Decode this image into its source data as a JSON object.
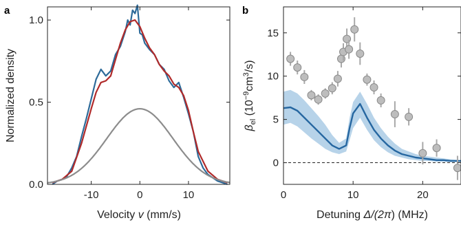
{
  "chart_data": [
    {
      "panel_label": "a",
      "type": "line",
      "xlabel": "Velocity v (mm/s)",
      "ylabel": "Normalized density",
      "xlim": [
        -19,
        18.5
      ],
      "ylim": [
        0,
        1.08
      ],
      "xticks": [
        -10,
        0,
        10
      ],
      "xtick_labels": [
        "-10",
        "0",
        "10"
      ],
      "yticks": [
        0,
        0.5,
        1.0
      ],
      "ytick_labels": [
        "0.0",
        "0.5",
        "1.0"
      ],
      "grid": false,
      "colors": {
        "data": "#2d6a99",
        "fit": "#b02a2a",
        "gaussian": "#8c8c8c"
      },
      "series": [
        {
          "role": "data",
          "x": [
            -18,
            -17,
            -16,
            -15,
            -14,
            -13,
            -12,
            -11,
            -10,
            -9,
            -8,
            -7,
            -6,
            -5,
            -4,
            -3,
            -2.5,
            -2,
            -1.5,
            -1,
            -0.5,
            0,
            0.5,
            1,
            2,
            3,
            4,
            5,
            6,
            7,
            8,
            9,
            10,
            11,
            12,
            13,
            14,
            15,
            16,
            17,
            18
          ],
          "y": [
            0.0,
            0.02,
            0.03,
            0.05,
            0.1,
            0.17,
            0.29,
            0.4,
            0.52,
            0.64,
            0.7,
            0.66,
            0.69,
            0.79,
            0.84,
            0.93,
            1.0,
            0.97,
            1.06,
            1.04,
            1.09,
            0.92,
            0.91,
            0.86,
            0.82,
            0.79,
            0.73,
            0.7,
            0.63,
            0.59,
            0.62,
            0.53,
            0.43,
            0.32,
            0.17,
            0.1,
            0.06,
            0.04,
            0.02,
            0.01,
            0.0
          ]
        },
        {
          "role": "fit",
          "x": [
            -18,
            -16,
            -14,
            -12,
            -10,
            -9,
            -8,
            -7,
            -6,
            -5,
            -4,
            -3,
            -2,
            -1,
            0,
            1,
            2,
            3,
            4,
            5,
            6,
            7,
            8,
            9,
            10,
            11,
            12,
            14,
            16,
            18
          ],
          "y": [
            0.01,
            0.03,
            0.08,
            0.25,
            0.46,
            0.56,
            0.62,
            0.63,
            0.66,
            0.76,
            0.86,
            0.94,
            0.99,
            1.0,
            0.96,
            0.89,
            0.83,
            0.79,
            0.73,
            0.69,
            0.66,
            0.61,
            0.59,
            0.54,
            0.45,
            0.32,
            0.2,
            0.08,
            0.03,
            0.01
          ]
        },
        {
          "role": "gaussian",
          "gaussian": {
            "amplitude": 0.46,
            "center": 0,
            "sigma": 6.8
          }
        }
      ]
    },
    {
      "panel_label": "b",
      "type": "scatter",
      "xlabel": "Detuning Δ/(2π) (MHz)",
      "ylabel": "β_el (10⁻⁹cm³/s)",
      "ylabel_main": "β",
      "ylabel_sub": "el",
      "ylabel_rest": " (10",
      "ylabel_exp": "−9",
      "ylabel_tail": "cm",
      "ylabel_exp2": "3",
      "ylabel_end": "/s)",
      "xlabel_main": "Detuning ",
      "xlabel_delta": "Δ/(2",
      "xlabel_pi": "π",
      "xlabel_end": ") (MHz)",
      "xlim": [
        0,
        25.5
      ],
      "ylim": [
        -2.5,
        18
      ],
      "xticks": [
        0,
        10,
        20
      ],
      "xtick_labels": [
        "0",
        "10",
        "20"
      ],
      "yticks": [
        0,
        5,
        10,
        15
      ],
      "ytick_labels": [
        "0",
        "5",
        "10",
        "15"
      ],
      "grid": false,
      "reference_line": {
        "y": 0,
        "style": "dashed"
      },
      "colors": {
        "points": "#bdbdbd",
        "theory": "#2566a0",
        "band": "#b7d3e9"
      },
      "points": [
        {
          "x": 1,
          "y": 12.0,
          "err": 0.8
        },
        {
          "x": 2,
          "y": 11.0,
          "err": 0.8
        },
        {
          "x": 3,
          "y": 9.9,
          "err": 0.8
        },
        {
          "x": 4,
          "y": 7.8,
          "err": 0.6
        },
        {
          "x": 5,
          "y": 7.3,
          "err": 0.6
        },
        {
          "x": 6,
          "y": 8.0,
          "err": 0.6
        },
        {
          "x": 7,
          "y": 8.6,
          "err": 0.7
        },
        {
          "x": 7.8,
          "y": 9.7,
          "err": 0.9
        },
        {
          "x": 8.3,
          "y": 12.0,
          "err": 1.0
        },
        {
          "x": 8.6,
          "y": 12.8,
          "err": 1.0
        },
        {
          "x": 9.1,
          "y": 14.3,
          "err": 1.2
        },
        {
          "x": 9.4,
          "y": 13.1,
          "err": 1.1
        },
        {
          "x": 10.2,
          "y": 15.4,
          "err": 1.4
        },
        {
          "x": 11,
          "y": 12.6,
          "err": 1.3
        },
        {
          "x": 12,
          "y": 9.6,
          "err": 0.7
        },
        {
          "x": 13,
          "y": 8.7,
          "err": 0.8
        },
        {
          "x": 14,
          "y": 7.2,
          "err": 0.8
        },
        {
          "x": 16,
          "y": 5.6,
          "err": 1.5
        },
        {
          "x": 18,
          "y": 5.3,
          "err": 1.0
        },
        {
          "x": 20,
          "y": 1.1,
          "err": 1.3
        },
        {
          "x": 22,
          "y": 1.7,
          "err": 1.0
        },
        {
          "x": 25,
          "y": -0.6,
          "err": 1.4
        }
      ],
      "theory": {
        "x": [
          0,
          1,
          2,
          3,
          4,
          5,
          6,
          7,
          8,
          9,
          9.5,
          10,
          11,
          12,
          13,
          14,
          15,
          16,
          17,
          18,
          19,
          20,
          21,
          22,
          23,
          24,
          25.5
        ],
        "y": [
          6.3,
          6.4,
          6.0,
          5.2,
          4.4,
          3.6,
          2.8,
          2.0,
          1.6,
          2.0,
          4.0,
          5.7,
          6.8,
          5.2,
          3.8,
          2.8,
          2.0,
          1.4,
          1.0,
          0.8,
          0.6,
          0.5,
          0.4,
          0.3,
          0.3,
          0.2,
          0.2
        ],
        "lower": [
          4.4,
          4.6,
          4.2,
          3.5,
          2.8,
          2.2,
          1.6,
          1.2,
          1.0,
          1.3,
          2.6,
          4.0,
          5.2,
          3.8,
          2.6,
          1.8,
          1.2,
          0.8,
          0.6,
          0.4,
          0.3,
          0.2,
          0.2,
          0.1,
          0.1,
          0.1,
          0.1
        ],
        "upper": [
          8.2,
          8.4,
          8.0,
          7.2,
          6.3,
          5.4,
          4.4,
          3.2,
          2.3,
          2.8,
          5.2,
          7.0,
          8.2,
          6.8,
          5.2,
          4.0,
          3.0,
          2.2,
          1.6,
          1.3,
          1.0,
          0.8,
          0.7,
          0.6,
          0.5,
          0.4,
          0.3
        ]
      }
    }
  ]
}
